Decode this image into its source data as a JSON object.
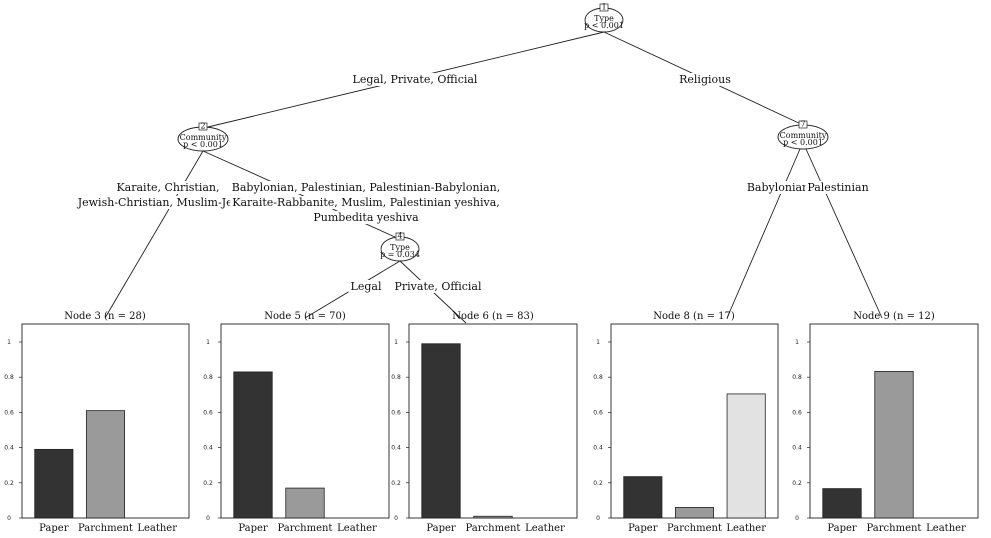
{
  "inner_nodes": [
    {
      "id": "1",
      "label": "1",
      "variable": "Type",
      "pvalue": "p < 0.001"
    },
    {
      "id": "2",
      "label": "2",
      "variable": "Community",
      "pvalue": "p < 0.001"
    },
    {
      "id": "4",
      "label": "4",
      "variable": "Type",
      "pvalue": "p = 0.034"
    },
    {
      "id": "7",
      "label": "7",
      "variable": "Community",
      "pvalue": "p < 0.001"
    }
  ],
  "edge_labels": {
    "n1_left": [
      "Legal, Private, Official"
    ],
    "n1_right": [
      "Religious"
    ],
    "n2_left": [
      "Karaite, Christian,",
      "Jewish-Christian, Muslim-Jewish"
    ],
    "n2_right": [
      "Babylonian, Palestinian, Palestinian-Babylonian,",
      "Karaite-Rabbanite, Muslim, Palestinian yeshiva,",
      "Pumbedita yeshiva"
    ],
    "n4_left": [
      "Legal"
    ],
    "n4_right": [
      "Private, Official"
    ],
    "n7_left": [
      "Babylonian"
    ],
    "n7_right": [
      "Palestinian"
    ]
  },
  "chart_data": [
    {
      "type": "bar",
      "title": "Node 3 (n = 28)",
      "categories": [
        "Paper",
        "Parchment",
        "Leather"
      ],
      "values": [
        0.39,
        0.61,
        0.0
      ],
      "ylim": [
        0,
        1
      ],
      "yticks": [
        "0",
        "0.2",
        "0.4",
        "0.6",
        "0.8",
        "1"
      ],
      "colors": [
        "#333333",
        "#9a9a9a",
        "#e2e2e2"
      ]
    },
    {
      "type": "bar",
      "title": "Node 5 (n = 70)",
      "categories": [
        "Paper",
        "Parchment",
        "Leather"
      ],
      "values": [
        0.83,
        0.17,
        0.0
      ],
      "ylim": [
        0,
        1
      ],
      "yticks": [
        "0",
        "0.2",
        "0.4",
        "0.6",
        "0.8",
        "1"
      ],
      "colors": [
        "#333333",
        "#9a9a9a",
        "#e2e2e2"
      ]
    },
    {
      "type": "bar",
      "title": "Node 6 (n = 83)",
      "categories": [
        "Paper",
        "Parchment",
        "Leather"
      ],
      "values": [
        0.99,
        0.01,
        0.0
      ],
      "ylim": [
        0,
        1
      ],
      "yticks": [
        "0",
        "0.2",
        "0.4",
        "0.6",
        "0.8",
        "1"
      ],
      "colors": [
        "#333333",
        "#9a9a9a",
        "#e2e2e2"
      ]
    },
    {
      "type": "bar",
      "title": "Node 8 (n = 17)",
      "categories": [
        "Paper",
        "Parchment",
        "Leather"
      ],
      "values": [
        0.235,
        0.06,
        0.705
      ],
      "ylim": [
        0,
        1
      ],
      "yticks": [
        "0",
        "0.2",
        "0.4",
        "0.6",
        "0.8",
        "1"
      ],
      "colors": [
        "#333333",
        "#9a9a9a",
        "#e2e2e2"
      ]
    },
    {
      "type": "bar",
      "title": "Node 9 (n = 12)",
      "categories": [
        "Paper",
        "Parchment",
        "Leather"
      ],
      "values": [
        0.167,
        0.833,
        0.0
      ],
      "ylim": [
        0,
        1
      ],
      "yticks": [
        "0",
        "0.2",
        "0.4",
        "0.6",
        "0.8",
        "1"
      ],
      "colors": [
        "#333333",
        "#9a9a9a",
        "#e2e2e2"
      ]
    }
  ]
}
